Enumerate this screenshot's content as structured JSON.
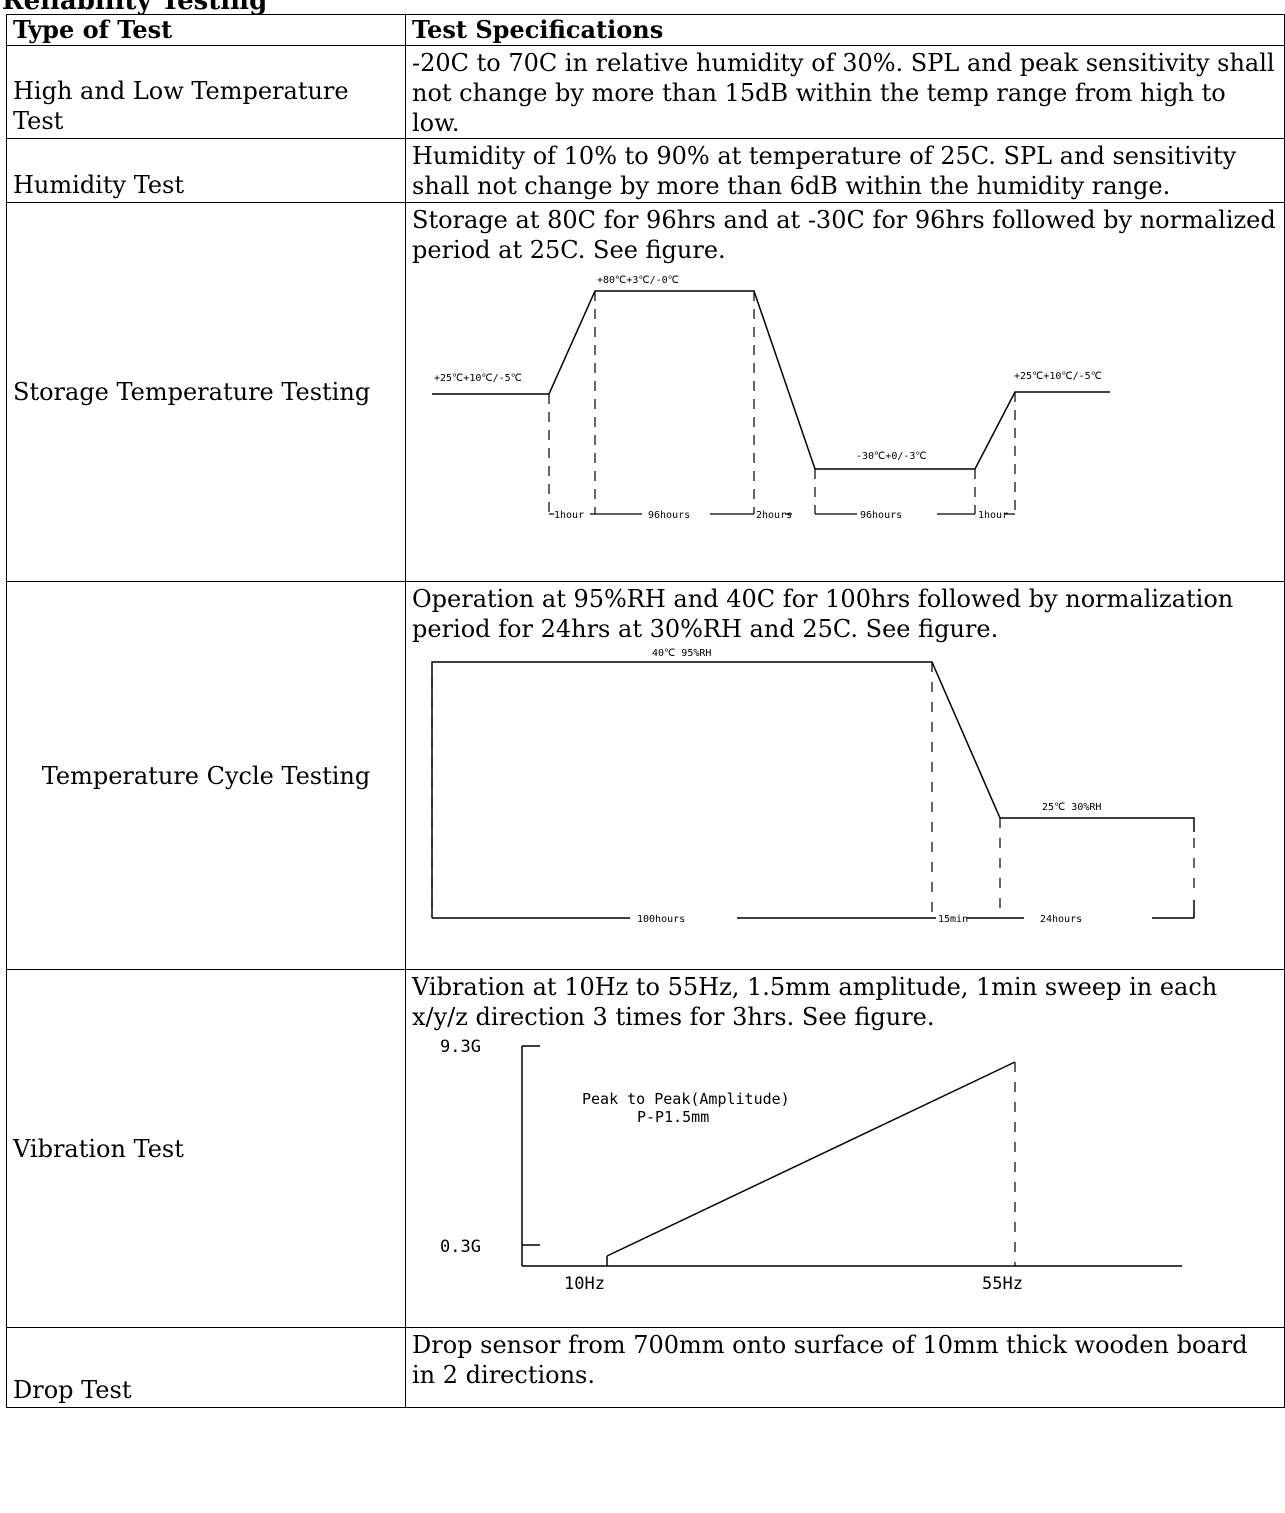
{
  "clipped_heading": "Reliability Testing",
  "table": {
    "headers": {
      "type": "Type of Test",
      "spec": "Test Specifications"
    },
    "rows": [
      {
        "type": "High and Low Temperature Test",
        "spec": "-20C to 70C in relative humidity of 30%.  SPL and peak sensitivity shall not change by more than 15dB within the temp range from high to low."
      },
      {
        "type": "Humidity Test",
        "spec": "Humidity of 10% to 90% at temperature of 25C. SPL and sensitivity shall not change by more than 6dB within the humidity range."
      },
      {
        "type": "Storage Temperature Testing",
        "spec": "Storage at 80C for 96hrs and at -30C for 96hrs followed by normalized period at 25C.  See figure."
      },
      {
        "type": "Temperature Cycle Testing",
        "spec": "Operation at 95%RH and 40C for 100hrs followed by normalization period for 24hrs at 30%RH and 25C. See figure."
      },
      {
        "type": "Vibration Test",
        "spec": "Vibration at 10Hz to 55Hz, 1.5mm amplitude, 1min sweep in each x/y/z direction 3 times for 3hrs. See figure."
      },
      {
        "type": "Drop Test",
        "spec": "Drop sensor from 700mm onto surface of 10mm thick wooden board in 2 directions."
      }
    ]
  },
  "figures": {
    "storage": {
      "start_label": "+25℃+10℃/-5℃",
      "high_label": "+80℃+3℃/-0℃",
      "low_label": "-30℃+0/-3℃",
      "end_label": "+25℃+10℃/-5℃",
      "durations": [
        "1hour",
        "96hours",
        "2hours",
        "96hours",
        "1hour"
      ]
    },
    "cycle": {
      "high_label": "40℃ 95%RH",
      "low_label": "25℃ 30%RH",
      "durations": [
        "100hours",
        "15min",
        "24hours"
      ]
    },
    "vibration": {
      "y_top": "9.3G",
      "y_bottom": "0.3G",
      "x_start": "10Hz",
      "x_end": "55Hz",
      "annotation_line1": "Peak to Peak(Amplitude)",
      "annotation_line2": "P-P1.5mm"
    }
  }
}
